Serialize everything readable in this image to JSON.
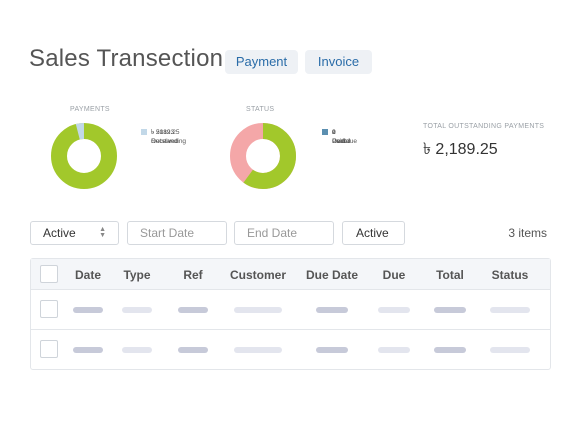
{
  "header": {
    "title": "Sales Transection",
    "tabs": [
      "Payment",
      "Invoice"
    ]
  },
  "payments_panel": {
    "label": "PAYMENTS",
    "received_pct": 0.96,
    "legend": [
      {
        "text": "৳ 50123",
        "text2": "Received",
        "color": "#a2c82b"
      },
      {
        "text": "৳ 2189.25",
        "text2": "Outstanding",
        "color": "#c2d8e8"
      }
    ]
  },
  "status_panel": {
    "label": "STATUS",
    "paid_pct": 0.6,
    "legend": [
      {
        "text": "2 Paid",
        "color": "#a2c82b"
      },
      {
        "text": "1 Overdue",
        "color": "#e8474a"
      },
      {
        "text": "0 Partial",
        "color": "#f0c419"
      },
      {
        "text": "0 Draft",
        "color": "#5b8fb0"
      }
    ]
  },
  "outstanding": {
    "label": "TOTAL OUTSTANDING PAYMENTS",
    "value": "৳ 2,189.25"
  },
  "filters": {
    "status_select": "Active",
    "start_date_placeholder": "Start Date",
    "end_date_placeholder": "End Date",
    "active_button": "Active",
    "items_count": "3 items"
  },
  "table": {
    "columns": [
      "Date",
      "Type",
      "Ref",
      "Customer",
      "Due Date",
      "Due",
      "Total",
      "Status"
    ]
  },
  "colors": {
    "accent_green": "#a2c82b",
    "status_red_seg": "#f4a7a8",
    "outstanding_blue": "#c2d8e8",
    "link_blue": "#2a6ca8"
  }
}
